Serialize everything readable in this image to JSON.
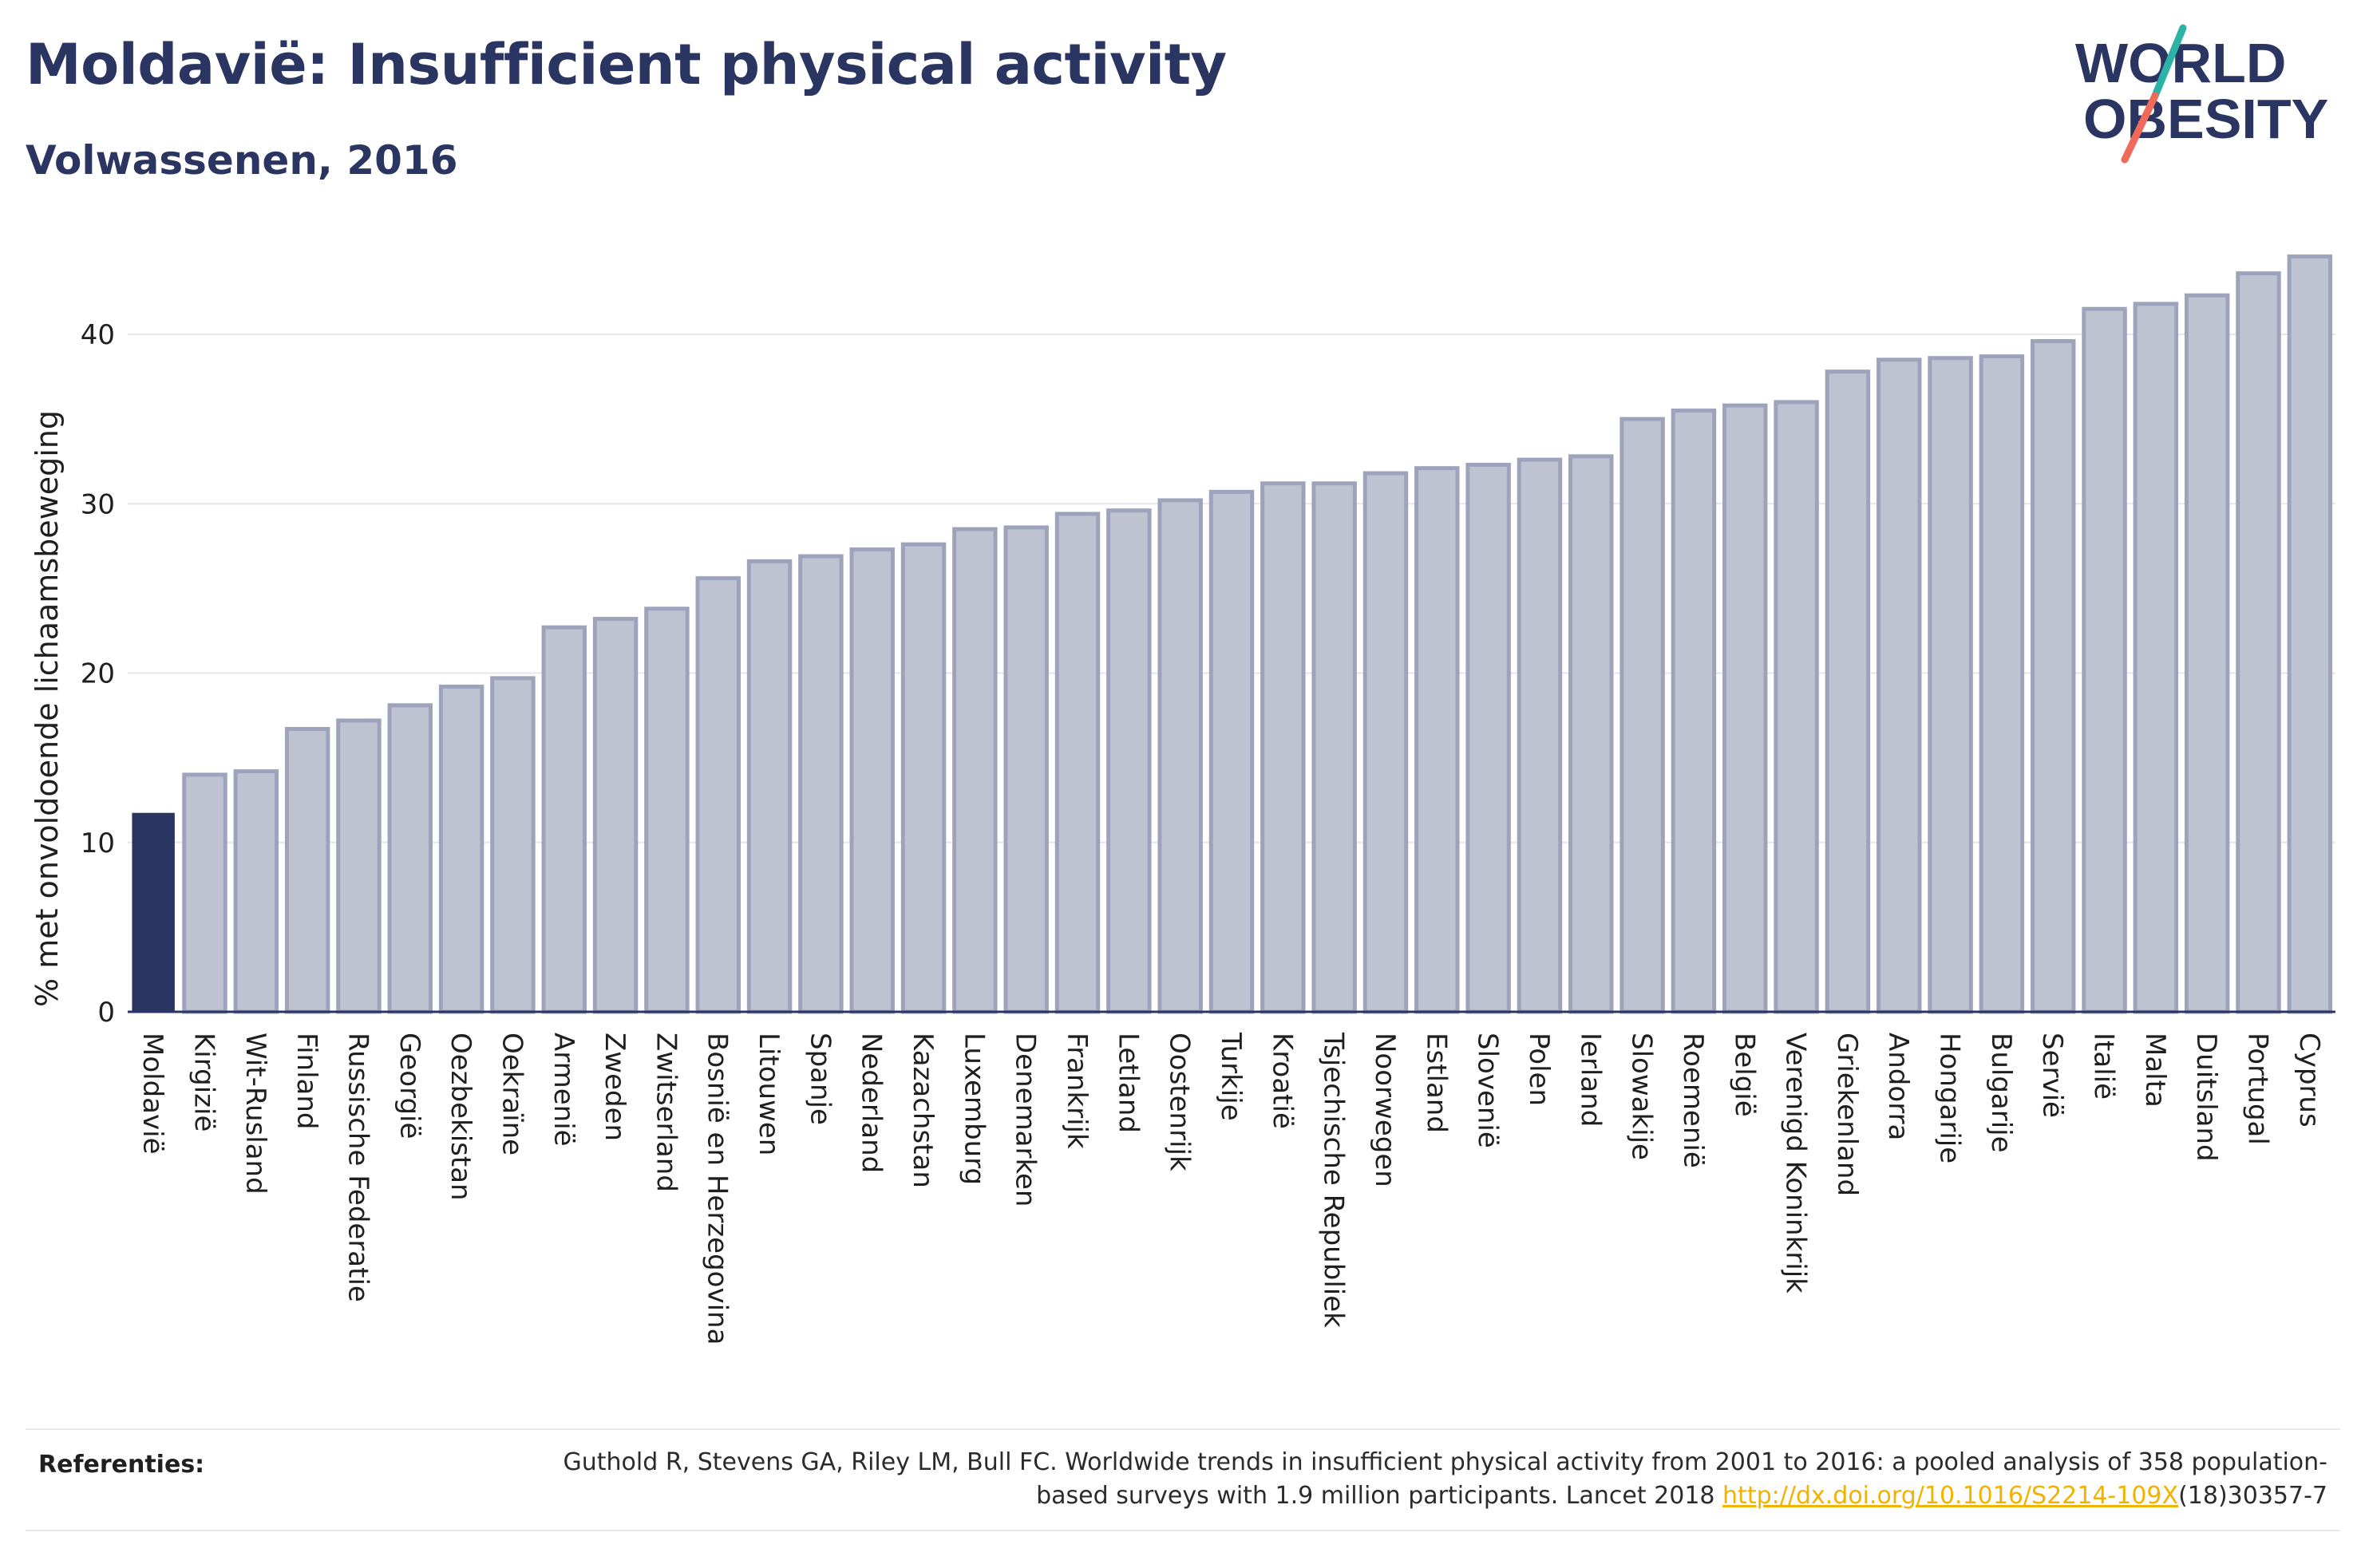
{
  "header": {
    "title": "Moldavië: Insufficient physical activity",
    "subtitle": "Volwassenen, 2016"
  },
  "logo": {
    "line1": "WORLD",
    "line2": "OBESITY",
    "colors": {
      "text": "#2a3561",
      "slash_top": "#2ab3a6",
      "slash_bottom": "#ef6a5a"
    }
  },
  "colors": {
    "highlight": "#2a3561",
    "bar_fill": "#bfc3d1",
    "bar_stroke": "#9ea3bc",
    "grid": "#e6e6ec",
    "axis": "#2a3561"
  },
  "chart_data": {
    "type": "bar",
    "title": "Moldavië: Insufficient physical activity",
    "subtitle": "Volwassenen, 2016",
    "xlabel": "",
    "ylabel": "% met onvoldoende lichaamsbeweging",
    "ylim": [
      0,
      45
    ],
    "yticks": [
      0,
      10,
      20,
      30,
      40
    ],
    "grid": true,
    "highlight_category": "Moldavië",
    "categories": [
      "Moldavië",
      "Kirgizië",
      "Wit-Rusland",
      "Finland",
      "Russische Federatie",
      "Georgië",
      "Oezbekistan",
      "Oekraïne",
      "Armenië",
      "Zweden",
      "Zwitserland",
      "Bosnië en Herzegovina",
      "Litouwen",
      "Spanje",
      "Nederland",
      "Kazachstan",
      "Luxemburg",
      "Denemarken",
      "Frankrijk",
      "Letland",
      "Oostenrijk",
      "Turkije",
      "Kroatië",
      "Tsjechische Republiek",
      "Noorwegen",
      "Estland",
      "Slovenië",
      "Polen",
      "Ierland",
      "Slowakije",
      "Roemenië",
      "België",
      "Verenigd Koninkrijk",
      "Griekenland",
      "Andorra",
      "Hongarije",
      "Bulgarije",
      "Servië",
      "Italië",
      "Malta",
      "Duitsland",
      "Portugal",
      "Cyprus"
    ],
    "values": [
      11.7,
      14.0,
      14.2,
      16.7,
      17.2,
      18.1,
      19.2,
      19.7,
      22.7,
      23.2,
      23.8,
      25.6,
      26.6,
      26.9,
      27.3,
      27.6,
      28.5,
      28.6,
      29.4,
      29.6,
      30.2,
      30.7,
      31.2,
      31.2,
      31.8,
      32.1,
      32.3,
      32.6,
      32.8,
      35.0,
      35.5,
      35.8,
      36.0,
      37.8,
      38.5,
      38.6,
      38.7,
      39.6,
      41.5,
      41.8,
      42.3,
      43.6,
      44.6
    ]
  },
  "references": {
    "label": "Referenties:",
    "text_part1": "Guthold R, Stevens GA, Riley LM, Bull FC. Worldwide trends in insufficient physical activity from 2001 to 2016: a pooled analysis of 358 population-based surveys with 1.9 million participants. Lancet 2018 ",
    "link": "http://dx.doi.org/10.1016/S2214-109X",
    "text_part2": "(18)30357-7"
  }
}
